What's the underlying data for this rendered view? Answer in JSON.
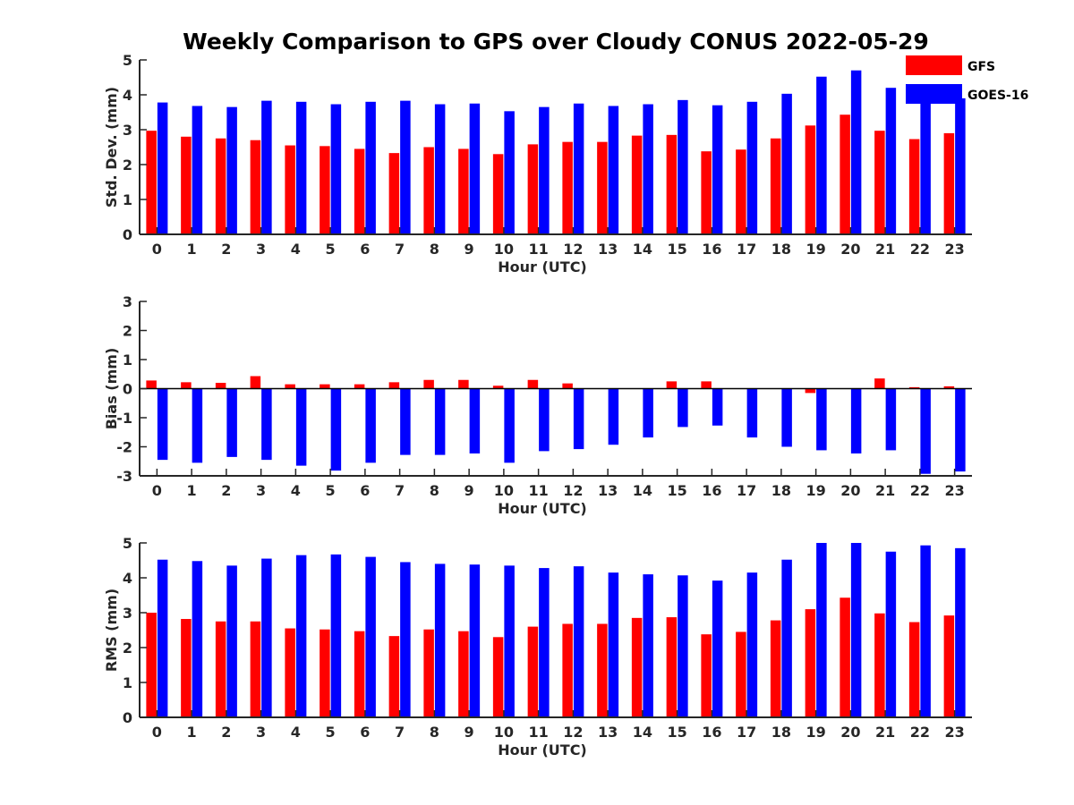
{
  "title": "Weekly Comparison to GPS over Cloudy CONUS 2022-05-29",
  "legend": {
    "placement": "top-right",
    "entries": [
      {
        "name": "GFS",
        "color": "#ff0000"
      },
      {
        "name": "GOES-16",
        "color": "#0000ff"
      }
    ]
  },
  "chart_data": [
    {
      "type": "bar",
      "xlabel": "Hour (UTC)",
      "ylabel": "Std. Dev. (mm)",
      "ylim": [
        0,
        5
      ],
      "yticks": [
        "0",
        "1",
        "2",
        "3",
        "4",
        "5"
      ],
      "categories": [
        "0",
        "1",
        "2",
        "3",
        "4",
        "5",
        "6",
        "7",
        "8",
        "9",
        "10",
        "11",
        "12",
        "13",
        "14",
        "15",
        "16",
        "17",
        "18",
        "19",
        "20",
        "21",
        "22",
        "23"
      ],
      "series": [
        {
          "name": "GFS",
          "color": "#ff0000",
          "values": [
            2.97,
            2.8,
            2.75,
            2.7,
            2.55,
            2.53,
            2.45,
            2.33,
            2.5,
            2.45,
            2.3,
            2.58,
            2.65,
            2.65,
            2.83,
            2.85,
            2.38,
            2.43,
            2.75,
            3.12,
            3.43,
            2.97,
            2.73,
            2.9
          ]
        },
        {
          "name": "GOES-16",
          "color": "#0000ff",
          "values": [
            3.78,
            3.68,
            3.65,
            3.83,
            3.8,
            3.73,
            3.8,
            3.83,
            3.73,
            3.75,
            3.53,
            3.65,
            3.75,
            3.68,
            3.73,
            3.85,
            3.7,
            3.8,
            4.03,
            4.52,
            4.7,
            4.2,
            3.95,
            3.9
          ]
        }
      ]
    },
    {
      "type": "bar",
      "xlabel": "Hour (UTC)",
      "ylabel": "Bias (mm)",
      "ylim": [
        -3,
        3
      ],
      "yticks": [
        "-3",
        "-2",
        "-1",
        "0",
        "1",
        "2",
        "3"
      ],
      "categories": [
        "0",
        "1",
        "2",
        "3",
        "4",
        "5",
        "6",
        "7",
        "8",
        "9",
        "10",
        "11",
        "12",
        "13",
        "14",
        "15",
        "16",
        "17",
        "18",
        "19",
        "20",
        "21",
        "22",
        "23"
      ],
      "series": [
        {
          "name": "GFS",
          "color": "#ff0000",
          "values": [
            0.28,
            0.22,
            0.2,
            0.43,
            0.15,
            0.15,
            0.15,
            0.22,
            0.3,
            0.3,
            0.1,
            0.3,
            0.18,
            0.0,
            0.0,
            0.25,
            0.25,
            0.0,
            0.0,
            -0.15,
            0.0,
            0.35,
            0.05,
            0.08
          ]
        },
        {
          "name": "GOES-16",
          "color": "#0000ff",
          "values": [
            -2.45,
            -2.55,
            -2.35,
            -2.45,
            -2.65,
            -2.82,
            -2.55,
            -2.28,
            -2.28,
            -2.23,
            -2.55,
            -2.15,
            -2.08,
            -1.93,
            -1.68,
            -1.32,
            -1.27,
            -1.68,
            -2.0,
            -2.12,
            -2.23,
            -2.12,
            -2.93,
            -2.85
          ]
        }
      ]
    },
    {
      "type": "bar",
      "xlabel": "Hour (UTC)",
      "ylabel": "RMS (mm)",
      "ylim": [
        0,
        5
      ],
      "yticks": [
        "0",
        "1",
        "2",
        "3",
        "4",
        "5"
      ],
      "categories": [
        "0",
        "1",
        "2",
        "3",
        "4",
        "5",
        "6",
        "7",
        "8",
        "9",
        "10",
        "11",
        "12",
        "13",
        "14",
        "15",
        "16",
        "17",
        "18",
        "19",
        "20",
        "21",
        "22",
        "23"
      ],
      "series": [
        {
          "name": "GFS",
          "color": "#ff0000",
          "values": [
            3.0,
            2.82,
            2.75,
            2.75,
            2.55,
            2.52,
            2.47,
            2.33,
            2.52,
            2.47,
            2.3,
            2.6,
            2.68,
            2.68,
            2.85,
            2.87,
            2.38,
            2.45,
            2.78,
            3.1,
            3.43,
            2.98,
            2.73,
            2.92
          ]
        },
        {
          "name": "GOES-16",
          "color": "#0000ff",
          "values": [
            4.52,
            4.48,
            4.35,
            4.55,
            4.65,
            4.67,
            4.6,
            4.45,
            4.4,
            4.38,
            4.35,
            4.28,
            4.33,
            4.15,
            4.1,
            4.07,
            3.92,
            4.15,
            4.52,
            5.0,
            5.0,
            4.75,
            4.93,
            4.85
          ]
        }
      ]
    }
  ]
}
